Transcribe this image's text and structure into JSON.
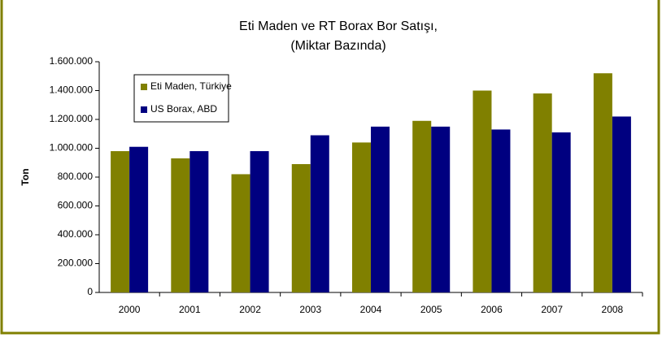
{
  "chart_data": {
    "type": "bar",
    "title": [
      "Eti Maden ve RT Borax Bor Satışı,",
      "(Miktar Bazında)"
    ],
    "y_label": "Ton",
    "categories": [
      "2000",
      "2001",
      "2002",
      "2003",
      "2004",
      "2005",
      "2006",
      "2007",
      "2008"
    ],
    "series": [
      {
        "name": "Eti Maden, Türkiye",
        "color": "#808000",
        "values": [
          980000,
          930000,
          820000,
          890000,
          1040000,
          1190000,
          1400000,
          1380000,
          1520000
        ]
      },
      {
        "name": "US Borax, ABD",
        "color": "#000080",
        "values": [
          1010000,
          980000,
          980000,
          1090000,
          1150000,
          1150000,
          1130000,
          1110000,
          1220000
        ]
      }
    ],
    "ylim": [
      0,
      1600000
    ],
    "yticks": [
      0,
      {
        "value": 200000,
        "label": "200.000"
      },
      {
        "value": 400000,
        "label": "400.000"
      },
      {
        "value": 600000,
        "label": "600.000"
      },
      {
        "value": 800000,
        "label": "800.000"
      },
      {
        "value": 1000000,
        "label": "1.000.000"
      },
      {
        "value": 1200000,
        "label": "1.200.000"
      },
      {
        "value": 1400000,
        "label": "1.400.000"
      },
      {
        "value": 1600000,
        "label": "1.600.000"
      }
    ],
    "legend": "top-left"
  }
}
